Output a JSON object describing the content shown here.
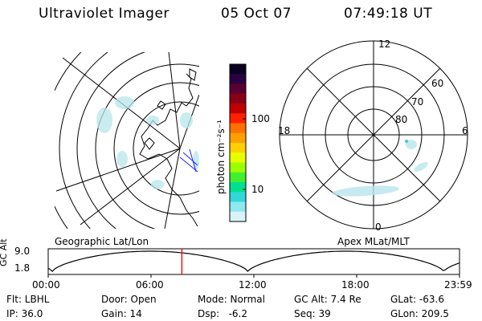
{
  "header": {
    "title": "Ultraviolet Imager",
    "date": "05 Oct 07",
    "time": "07:49:18 UT"
  },
  "left_panel": {
    "label": "Geographic Lat/Lon"
  },
  "right_panel": {
    "label": "Apex MLat/MLT",
    "mlt_labels": {
      "top": "12",
      "left": "18",
      "right": "6",
      "bottom": "0"
    },
    "lat_labels": [
      "60",
      "70",
      "80"
    ]
  },
  "colorbar": {
    "unit_label": "photon cm⁻²s⁻¹",
    "ticks": [
      "100",
      "10"
    ],
    "colors": [
      "#0a0022",
      "#2a0040",
      "#5a0030",
      "#8a0018",
      "#c00000",
      "#ff2000",
      "#ff7000",
      "#ffa000",
      "#ffd000",
      "#e8ff00",
      "#9cff00",
      "#40f030",
      "#00e090",
      "#30d8d8",
      "#90e8f0",
      "#d8f4f8"
    ]
  },
  "timeline": {
    "axis_label": "GC Alt",
    "y_ticks": [
      "9.0",
      "1.8"
    ],
    "x_ticks": [
      "00:00",
      "06:00",
      "12:00",
      "18:00",
      "23:59"
    ],
    "current_time_fraction": 0.325,
    "marker_color": "#ff0000"
  },
  "info": {
    "filter": "Flt: LBHL",
    "door": "Door: Open",
    "mode": "Mode: Normal",
    "gc_alt": "GC Alt: 7.4 Re",
    "glat": "GLat: -63.6",
    "ip": "IP: 36.0",
    "gain": "Gain: 14",
    "dsp": "Dsp:   -6.2",
    "seq": "Seq: 39",
    "glon": "GLon: 209.5"
  }
}
